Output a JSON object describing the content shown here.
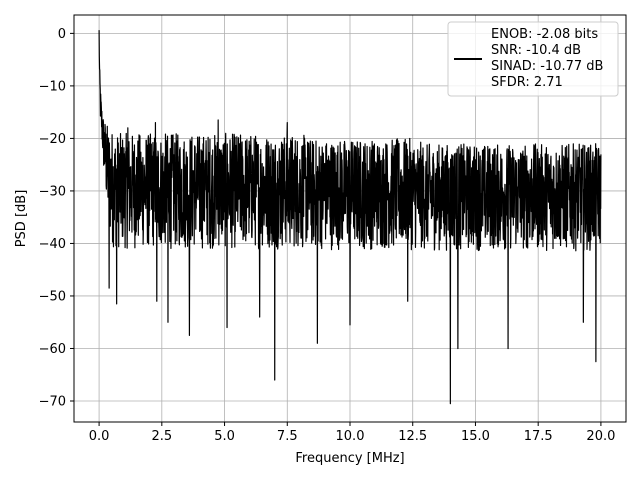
{
  "chart_data": {
    "type": "line",
    "title": "",
    "xlabel": "Frequency [MHz]",
    "ylabel": "PSD [dB]",
    "xlim": [
      -1.0,
      21.0
    ],
    "ylim": [
      -74.0,
      3.5
    ],
    "xticks": [
      0.0,
      2.5,
      5.0,
      7.5,
      10.0,
      12.5,
      15.0,
      17.5,
      20.0
    ],
    "xtick_labels": [
      "0.0",
      "2.5",
      "5.0",
      "7.5",
      "10.0",
      "12.5",
      "15.0",
      "17.5",
      "20.0"
    ],
    "yticks": [
      0,
      -10,
      -20,
      -30,
      -40,
      -50,
      -60,
      -70
    ],
    "ytick_labels": [
      "0",
      "−10",
      "−20",
      "−30",
      "−40",
      "−50",
      "−60",
      "−70"
    ],
    "grid": true,
    "legend_position": "top-right",
    "line_color": "#000000",
    "grid_color": "#b0b0b0",
    "legend": {
      "lines": [
        "ENOB: -2.08 bits",
        "SNR: -10.4 dB",
        "SINAD: -10.77 dB",
        "SFDR: 2.71"
      ]
    },
    "series": [
      {
        "x": [
          0.0,
          0.02,
          0.05,
          0.1,
          0.15,
          0.2,
          0.3,
          0.4,
          0.5,
          0.6,
          0.7,
          0.8,
          1.0,
          1.3,
          1.6,
          2.0,
          2.5,
          3.0,
          3.5,
          4.0,
          4.5,
          5.0,
          5.5,
          6.0,
          6.5,
          7.0,
          7.5,
          8.0,
          8.5,
          9.0,
          9.5,
          10.0,
          10.5,
          11.0,
          11.5,
          12.0,
          12.5,
          13.0,
          13.5,
          14.0,
          14.5,
          15.0,
          15.5,
          16.0,
          16.5,
          17.0,
          17.5,
          18.0,
          18.5,
          19.0,
          19.5,
          20.0
        ],
        "y": [
          0,
          -8,
          -12,
          -15,
          -18,
          -20,
          -22,
          -23,
          -24,
          -25,
          -26,
          -27,
          -28,
          -29,
          -30,
          -30,
          -31,
          -31,
          -31,
          -31,
          -32,
          -32,
          -32,
          -32,
          -32,
          -32,
          -32,
          -32,
          -32,
          -32,
          -32,
          -32,
          -32,
          -32,
          -32,
          -32,
          -32,
          -32,
          -32,
          -32,
          -32,
          -32,
          -32,
          -32,
          -32,
          -32,
          -32,
          -32,
          -32,
          -32,
          -32,
          -32
        ],
        "upper": [
          0,
          -8,
          -10,
          -13,
          -15,
          -16,
          -17,
          -18,
          -18,
          -19,
          -19,
          -19,
          -19,
          -19,
          -19,
          -19,
          -19,
          -19,
          -19,
          -19,
          -19,
          -19,
          -19,
          -19,
          -19,
          -19,
          -19,
          -19,
          -20,
          -20,
          -20,
          -20,
          -20,
          -20,
          -20,
          -20,
          -20,
          -21,
          -21,
          -21,
          -21,
          -21,
          -21,
          -21,
          -21,
          -21,
          -21,
          -21,
          -21,
          -21,
          -21,
          -21
        ],
        "lower": [
          0,
          -10,
          -18,
          -22,
          -26,
          -30,
          -36,
          -42,
          -44,
          -45,
          -45,
          -45,
          -45,
          -45,
          -45,
          -45,
          -45,
          -45,
          -45,
          -45,
          -45,
          -45,
          -45,
          -45,
          -45,
          -45,
          -45,
          -45,
          -45,
          -45,
          -45,
          -45,
          -45,
          -45,
          -45,
          -45,
          -45,
          -45,
          -45,
          -45,
          -45,
          -45,
          -45,
          -45,
          -45,
          -45,
          -45,
          -45,
          -45,
          -45,
          -45,
          -45
        ],
        "spikes": [
          {
            "x": 0.4,
            "y": -48.5
          },
          {
            "x": 0.7,
            "y": -51.5
          },
          {
            "x": 2.3,
            "y": -51
          },
          {
            "x": 2.75,
            "y": -55
          },
          {
            "x": 3.6,
            "y": -57.5
          },
          {
            "x": 5.1,
            "y": -56
          },
          {
            "x": 6.4,
            "y": -54
          },
          {
            "x": 7.0,
            "y": -66
          },
          {
            "x": 8.7,
            "y": -59
          },
          {
            "x": 10.0,
            "y": -15.5
          },
          {
            "x": 10.0,
            "y": -55.5
          },
          {
            "x": 12.3,
            "y": -51
          },
          {
            "x": 14.0,
            "y": -70.5
          },
          {
            "x": 14.3,
            "y": -60
          },
          {
            "x": 16.3,
            "y": -60
          },
          {
            "x": 19.3,
            "y": -55
          },
          {
            "x": 19.8,
            "y": -62.5
          },
          {
            "x": 1.15,
            "y": -18
          },
          {
            "x": 2.25,
            "y": -17
          },
          {
            "x": 4.75,
            "y": -16.5
          },
          {
            "x": 7.5,
            "y": -17
          }
        ]
      }
    ]
  }
}
